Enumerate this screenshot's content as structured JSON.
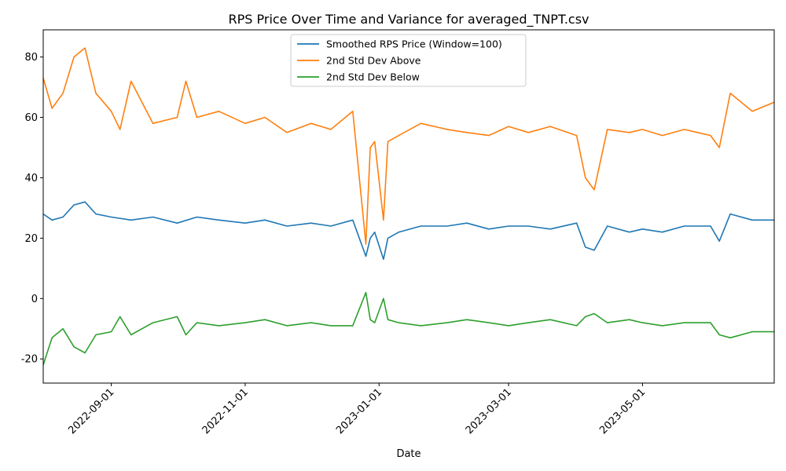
{
  "chart_data": {
    "type": "line",
    "title": "RPS Price Over Time and Variance for averaged_TNPT.csv",
    "xlabel": "Date",
    "ylabel": "",
    "x_range": [
      "2022-08-01",
      "2023-06-30"
    ],
    "ylim": [
      -28,
      89
    ],
    "yticks": [
      -20,
      0,
      20,
      40,
      60,
      80
    ],
    "xticks": [
      "2022-09-01",
      "2022-11-01",
      "2023-01-01",
      "2023-03-01",
      "2023-05-01"
    ],
    "grid": false,
    "legend_position": "upper center",
    "series": [
      {
        "name": "Smoothed RPS Price (Window=100)",
        "color": "#1f77b4",
        "x": [
          "2022-08-01",
          "2022-08-05",
          "2022-08-10",
          "2022-08-15",
          "2022-08-20",
          "2022-08-25",
          "2022-09-01",
          "2022-09-10",
          "2022-09-20",
          "2022-10-01",
          "2022-10-10",
          "2022-10-20",
          "2022-11-01",
          "2022-11-10",
          "2022-11-20",
          "2022-12-01",
          "2022-12-10",
          "2022-12-20",
          "2022-12-26",
          "2022-12-28",
          "2022-12-30",
          "2023-01-03",
          "2023-01-05",
          "2023-01-10",
          "2023-01-20",
          "2023-02-01",
          "2023-02-10",
          "2023-02-20",
          "2023-03-01",
          "2023-03-10",
          "2023-03-20",
          "2023-04-01",
          "2023-04-05",
          "2023-04-09",
          "2023-04-15",
          "2023-04-25",
          "2023-05-01",
          "2023-05-10",
          "2023-05-20",
          "2023-06-01",
          "2023-06-05",
          "2023-06-10",
          "2023-06-20",
          "2023-06-30"
        ],
        "y": [
          28,
          26,
          27,
          31,
          32,
          28,
          27,
          26,
          27,
          25,
          27,
          26,
          25,
          26,
          24,
          25,
          24,
          26,
          14,
          20,
          22,
          13,
          20,
          22,
          24,
          24,
          25,
          23,
          24,
          24,
          23,
          25,
          17,
          16,
          24,
          22,
          23,
          22,
          24,
          24,
          19,
          28,
          26,
          26
        ]
      },
      {
        "name": "2nd Std Dev Above",
        "color": "#ff7f0e",
        "x": [
          "2022-08-01",
          "2022-08-05",
          "2022-08-10",
          "2022-08-15",
          "2022-08-20",
          "2022-08-25",
          "2022-09-01",
          "2022-09-05",
          "2022-09-10",
          "2022-09-20",
          "2022-10-01",
          "2022-10-05",
          "2022-10-10",
          "2022-10-20",
          "2022-11-01",
          "2022-11-10",
          "2022-11-20",
          "2022-12-01",
          "2022-12-10",
          "2022-12-20",
          "2022-12-26",
          "2022-12-28",
          "2022-12-30",
          "2023-01-03",
          "2023-01-05",
          "2023-01-10",
          "2023-01-20",
          "2023-02-01",
          "2023-02-10",
          "2023-02-20",
          "2023-03-01",
          "2023-03-10",
          "2023-03-20",
          "2023-04-01",
          "2023-04-05",
          "2023-04-09",
          "2023-04-15",
          "2023-04-25",
          "2023-05-01",
          "2023-05-10",
          "2023-05-20",
          "2023-06-01",
          "2023-06-05",
          "2023-06-10",
          "2023-06-20",
          "2023-06-30"
        ],
        "y": [
          73,
          63,
          68,
          80,
          83,
          68,
          62,
          56,
          72,
          58,
          60,
          72,
          60,
          62,
          58,
          60,
          55,
          58,
          56,
          62,
          18,
          50,
          52,
          26,
          52,
          54,
          58,
          56,
          55,
          54,
          57,
          55,
          57,
          54,
          40,
          36,
          56,
          55,
          56,
          54,
          56,
          54,
          50,
          68,
          62,
          65
        ]
      },
      {
        "name": "2nd Std Dev Below",
        "color": "#2ca02c",
        "x": [
          "2022-08-01",
          "2022-08-05",
          "2022-08-10",
          "2022-08-15",
          "2022-08-20",
          "2022-08-25",
          "2022-09-01",
          "2022-09-05",
          "2022-09-10",
          "2022-09-20",
          "2022-10-01",
          "2022-10-05",
          "2022-10-10",
          "2022-10-20",
          "2022-11-01",
          "2022-11-10",
          "2022-11-20",
          "2022-12-01",
          "2022-12-10",
          "2022-12-20",
          "2022-12-26",
          "2022-12-28",
          "2022-12-30",
          "2023-01-03",
          "2023-01-05",
          "2023-01-10",
          "2023-01-20",
          "2023-02-01",
          "2023-02-10",
          "2023-02-20",
          "2023-03-01",
          "2023-03-10",
          "2023-03-20",
          "2023-04-01",
          "2023-04-05",
          "2023-04-09",
          "2023-04-15",
          "2023-04-25",
          "2023-05-01",
          "2023-05-10",
          "2023-05-20",
          "2023-06-01",
          "2023-06-05",
          "2023-06-10",
          "2023-06-20",
          "2023-06-30"
        ],
        "y": [
          -22,
          -13,
          -10,
          -16,
          -18,
          -12,
          -11,
          -6,
          -12,
          -8,
          -6,
          -12,
          -8,
          -9,
          -8,
          -7,
          -9,
          -8,
          -9,
          -9,
          2,
          -7,
          -8,
          0,
          -7,
          -8,
          -9,
          -8,
          -7,
          -8,
          -9,
          -8,
          -7,
          -9,
          -6,
          -5,
          -8,
          -7,
          -8,
          -9,
          -8,
          -8,
          -12,
          -13,
          -11,
          -11
        ]
      }
    ]
  }
}
